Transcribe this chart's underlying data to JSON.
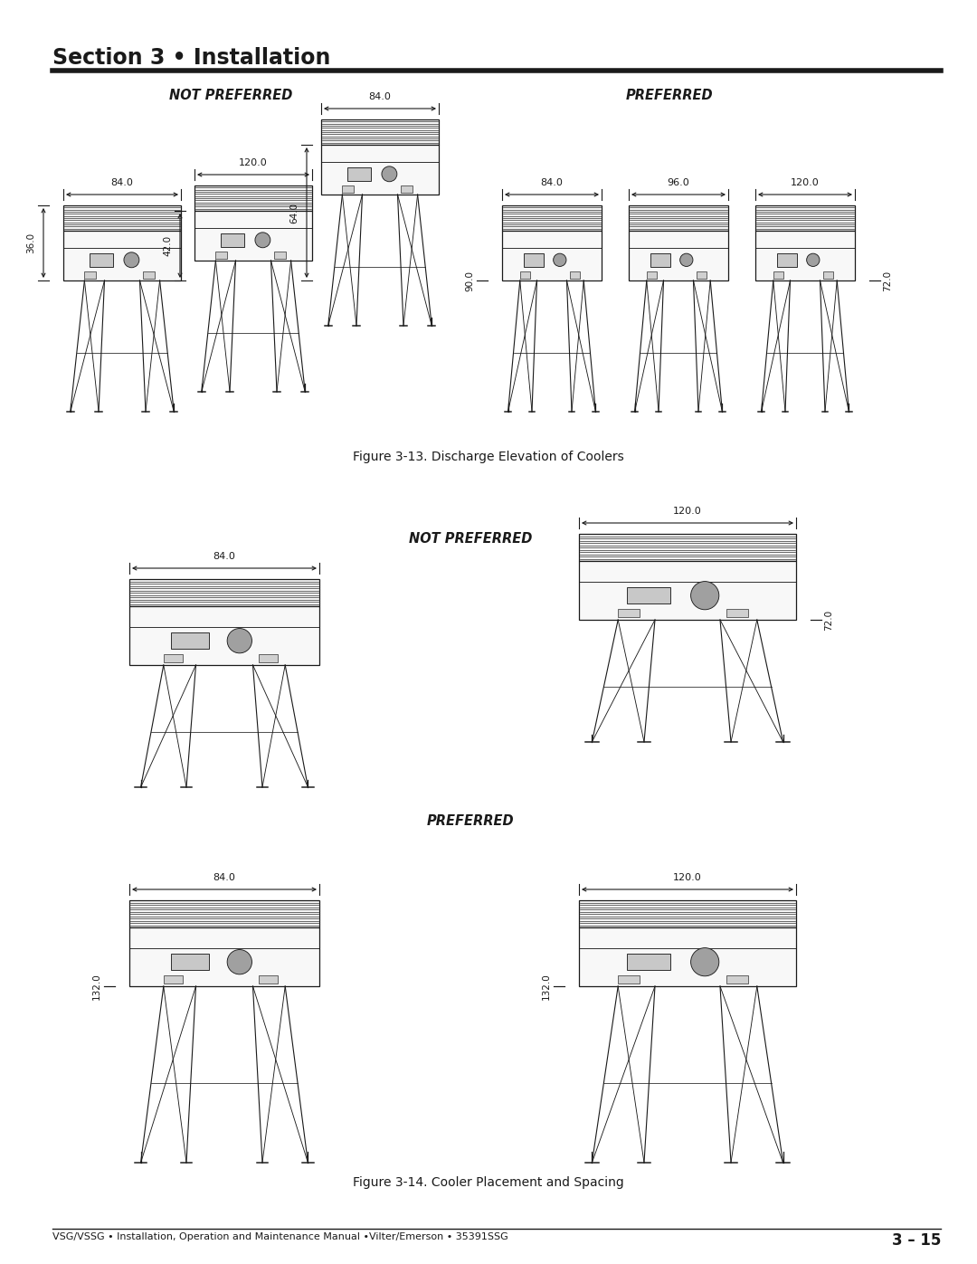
{
  "title": "Section 3 • Installation",
  "footer_left": "VSG/VSSG • Installation, Operation and Maintenance Manual •Vilter/Emerson • 35391SSG",
  "footer_right": "3 – 15",
  "fig13_caption": "Figure 3-13. Discharge Elevation of Coolers",
  "fig14_caption": "Figure 3-14. Cooler Placement and Spacing",
  "not_preferred_label": "NOT PREFERRED",
  "preferred_label": "PREFERRED",
  "bg_color": "#ffffff",
  "text_color": "#1a1a1a",
  "line_color": "#1a1a1a"
}
